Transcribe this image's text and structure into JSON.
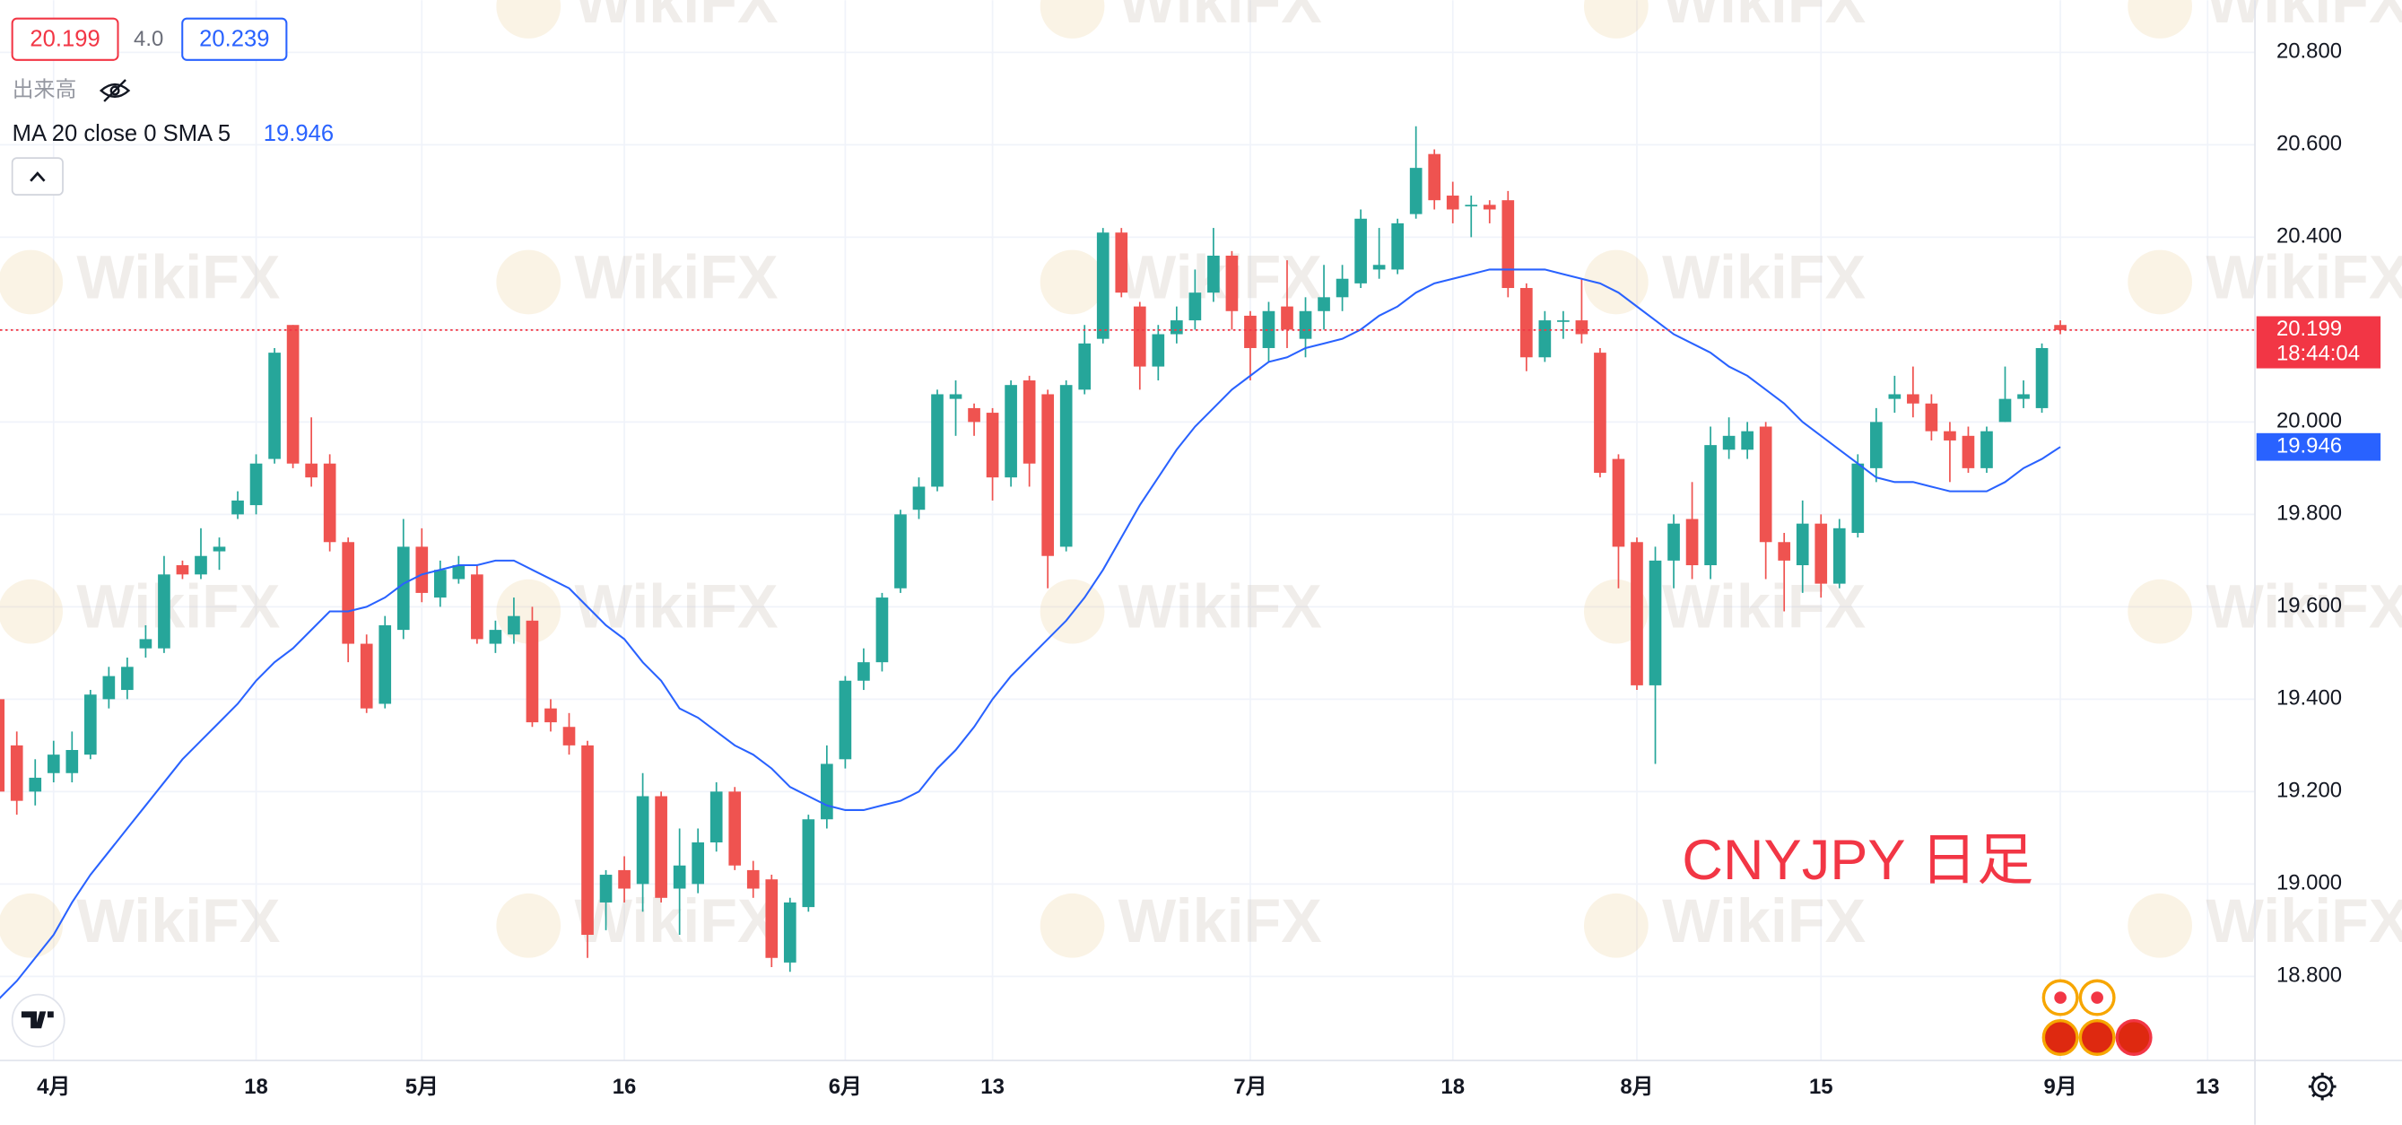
{
  "toolbar": {
    "sell": "20.199",
    "spread": "4.0",
    "buy": "20.239",
    "volume_label": "出来高",
    "indicator": "MA 20 close 0 SMA 5",
    "indicator_value": "19.946"
  },
  "chart_data": {
    "type": "candlestick",
    "annotation": "CNYJPY 日足",
    "watermark": "WikiFX",
    "up_color": "#26a69a",
    "down_color": "#ef5350",
    "grid": true,
    "categories": [
      null,
      null,
      null,
      "4月",
      null,
      null,
      null,
      null,
      null,
      null,
      null,
      null,
      null,
      null,
      "18",
      null,
      null,
      null,
      null,
      null,
      null,
      null,
      null,
      "5月",
      null,
      null,
      null,
      null,
      null,
      null,
      null,
      null,
      null,
      null,
      "16",
      null,
      null,
      null,
      null,
      null,
      null,
      null,
      null,
      null,
      null,
      null,
      "6月",
      null,
      null,
      null,
      null,
      null,
      null,
      null,
      "13",
      null,
      null,
      null,
      null,
      null,
      null,
      null,
      null,
      null,
      null,
      null,
      null,
      null,
      "7月",
      null,
      null,
      null,
      null,
      null,
      null,
      null,
      null,
      null,
      null,
      "18",
      null,
      null,
      null,
      null,
      null,
      null,
      null,
      null,
      null,
      "8月",
      null,
      null,
      null,
      null,
      null,
      null,
      null,
      null,
      null,
      "15",
      null,
      null,
      null,
      null,
      null,
      null,
      null,
      null,
      null,
      null,
      null,
      null,
      "9月",
      null,
      null,
      null,
      null,
      null,
      null,
      null,
      "13"
    ],
    "open": [
      19.4,
      19.3,
      19.2,
      19.24,
      19.24,
      19.28,
      19.4,
      19.42,
      19.51,
      19.51,
      19.69,
      19.67,
      19.72,
      19.8,
      19.82,
      19.92,
      20.21,
      19.91,
      19.91,
      19.74,
      19.52,
      19.39,
      19.55,
      19.73,
      19.62,
      19.66,
      19.67,
      19.52,
      19.54,
      19.57,
      19.38,
      19.34,
      19.3,
      18.96,
      19.03,
      19.0,
      19.19,
      18.99,
      19.0,
      19.09,
      19.2,
      19.03,
      19.01,
      18.83,
      18.95,
      19.14,
      19.27,
      19.44,
      19.48,
      19.64,
      19.81,
      19.86,
      20.05,
      20.03,
      20.02,
      19.88,
      20.09,
      20.06,
      19.73,
      20.07,
      20.18,
      20.41,
      20.25,
      20.12,
      20.19,
      20.22,
      20.28,
      20.36,
      20.23,
      20.16,
      20.25,
      20.18,
      20.24,
      20.27,
      20.3,
      20.33,
      20.33,
      20.45,
      20.58,
      20.49,
      20.47,
      20.47,
      20.48,
      20.29,
      20.14,
      20.22,
      20.22,
      20.15,
      19.92,
      19.74,
      19.43,
      19.7,
      19.79,
      19.69,
      19.94,
      19.94,
      19.99,
      19.74,
      19.69,
      19.78,
      19.65,
      19.76,
      19.9,
      20.05,
      20.06,
      20.04,
      19.98,
      19.97,
      19.9,
      20.0,
      20.05,
      20.03,
      20.21,
      null,
      null,
      null,
      null,
      null,
      null,
      null,
      null
    ],
    "high": [
      19.42,
      19.33,
      19.27,
      19.31,
      19.33,
      19.42,
      19.47,
      19.49,
      19.56,
      19.71,
      19.7,
      19.77,
      19.75,
      19.85,
      19.93,
      20.16,
      20.21,
      20.01,
      19.93,
      19.75,
      19.54,
      19.58,
      19.79,
      19.77,
      19.7,
      19.71,
      19.69,
      19.57,
      19.62,
      19.6,
      19.4,
      19.37,
      19.31,
      19.03,
      19.06,
      19.24,
      19.2,
      19.12,
      19.12,
      19.22,
      19.21,
      19.05,
      19.02,
      18.97,
      19.15,
      19.3,
      19.45,
      19.51,
      19.63,
      19.81,
      19.88,
      20.07,
      20.09,
      20.04,
      20.03,
      20.09,
      20.1,
      20.07,
      20.09,
      20.21,
      20.42,
      20.42,
      20.26,
      20.21,
      20.25,
      20.33,
      20.42,
      20.37,
      20.24,
      20.26,
      20.35,
      20.27,
      20.34,
      20.34,
      20.46,
      20.42,
      20.44,
      20.64,
      20.59,
      20.52,
      20.49,
      20.48,
      20.5,
      20.3,
      20.24,
      20.24,
      20.31,
      20.16,
      19.93,
      19.75,
      19.73,
      19.8,
      19.87,
      19.99,
      20.01,
      20.0,
      20.0,
      19.76,
      19.83,
      19.8,
      19.79,
      19.93,
      20.03,
      20.1,
      20.12,
      20.06,
      20.0,
      19.99,
      19.99,
      20.12,
      20.09,
      20.17,
      20.22,
      null,
      null,
      null,
      null,
      null,
      null,
      null,
      null
    ],
    "low": [
      19.12,
      19.15,
      19.17,
      19.22,
      19.22,
      19.27,
      19.38,
      19.4,
      19.49,
      19.5,
      19.66,
      19.66,
      19.68,
      19.79,
      19.8,
      19.91,
      19.9,
      19.86,
      19.72,
      19.48,
      19.37,
      19.38,
      19.53,
      19.61,
      19.6,
      19.65,
      19.52,
      19.5,
      19.52,
      19.34,
      19.33,
      19.28,
      18.84,
      18.9,
      18.96,
      18.94,
      18.96,
      18.89,
      18.98,
      19.07,
      19.03,
      18.97,
      18.82,
      18.81,
      18.94,
      19.12,
      19.25,
      19.42,
      19.46,
      19.63,
      19.79,
      19.85,
      19.97,
      19.97,
      19.83,
      19.86,
      19.86,
      19.64,
      19.72,
      20.06,
      20.17,
      20.27,
      20.07,
      20.09,
      20.17,
      20.2,
      20.26,
      20.2,
      20.09,
      20.13,
      20.16,
      20.14,
      20.2,
      20.24,
      20.29,
      20.31,
      20.32,
      20.44,
      20.46,
      20.43,
      20.4,
      20.43,
      20.27,
      20.11,
      20.13,
      20.18,
      20.17,
      19.88,
      19.64,
      19.42,
      19.26,
      19.64,
      19.66,
      19.66,
      19.92,
      19.92,
      19.66,
      19.59,
      19.63,
      19.62,
      19.64,
      19.75,
      19.87,
      20.02,
      20.01,
      19.96,
      19.87,
      19.89,
      19.89,
      20.0,
      20.03,
      20.02,
      20.19,
      null,
      null,
      null,
      null,
      null,
      null,
      null,
      null
    ],
    "close": [
      19.2,
      19.18,
      19.23,
      19.28,
      19.29,
      19.41,
      19.45,
      19.47,
      19.53,
      19.67,
      19.67,
      19.71,
      19.73,
      19.83,
      19.91,
      20.15,
      19.91,
      19.88,
      19.74,
      19.52,
      19.38,
      19.56,
      19.73,
      19.63,
      19.68,
      19.69,
      19.53,
      19.55,
      19.58,
      19.35,
      19.35,
      19.3,
      18.89,
      19.02,
      18.99,
      19.19,
      18.97,
      19.04,
      19.09,
      19.2,
      19.04,
      18.99,
      18.84,
      18.96,
      19.14,
      19.26,
      19.44,
      19.48,
      19.62,
      19.8,
      19.86,
      20.06,
      20.06,
      20.0,
      19.88,
      20.08,
      19.91,
      19.71,
      20.08,
      20.17,
      20.41,
      20.28,
      20.12,
      20.19,
      20.22,
      20.28,
      20.36,
      20.24,
      20.16,
      20.24,
      20.2,
      20.24,
      20.27,
      20.31,
      20.44,
      20.34,
      20.43,
      20.55,
      20.48,
      20.46,
      20.47,
      20.46,
      20.29,
      20.14,
      20.22,
      20.22,
      20.19,
      19.89,
      19.73,
      19.43,
      19.7,
      19.78,
      19.69,
      19.95,
      19.97,
      19.98,
      19.74,
      19.7,
      19.78,
      19.65,
      19.77,
      19.91,
      20.0,
      20.06,
      20.04,
      19.98,
      19.96,
      19.9,
      19.98,
      20.05,
      20.06,
      20.16,
      20.199,
      null,
      null,
      null,
      null,
      null,
      null,
      null,
      null
    ],
    "ma": {
      "color": "#2962ff",
      "values": [
        18.75,
        18.79,
        18.84,
        18.89,
        18.96,
        19.02,
        19.07,
        19.12,
        19.17,
        19.22,
        19.27,
        19.31,
        19.35,
        19.39,
        19.44,
        19.48,
        19.51,
        19.55,
        19.59,
        19.59,
        19.6,
        19.62,
        19.65,
        19.67,
        19.68,
        19.69,
        19.69,
        19.7,
        19.7,
        19.68,
        19.66,
        19.64,
        19.6,
        19.56,
        19.53,
        19.48,
        19.44,
        19.38,
        19.36,
        19.33,
        19.3,
        19.28,
        19.25,
        19.21,
        19.19,
        19.17,
        19.16,
        19.16,
        19.17,
        19.18,
        19.2,
        19.25,
        19.29,
        19.34,
        19.4,
        19.45,
        19.49,
        19.53,
        19.57,
        19.62,
        19.68,
        19.75,
        19.82,
        19.88,
        19.94,
        19.99,
        20.03,
        20.07,
        20.1,
        20.13,
        20.14,
        20.16,
        20.17,
        20.18,
        20.2,
        20.23,
        20.25,
        20.28,
        20.3,
        20.31,
        20.32,
        20.33,
        20.33,
        20.33,
        20.33,
        20.32,
        20.31,
        20.3,
        20.28,
        20.25,
        20.22,
        20.19,
        20.17,
        20.15,
        20.12,
        20.1,
        20.07,
        20.04,
        20.0,
        19.97,
        19.94,
        19.91,
        19.88,
        19.87,
        19.87,
        19.86,
        19.85,
        19.85,
        19.85,
        19.87,
        19.9,
        19.92,
        19.946,
        null,
        null,
        null,
        null,
        null,
        null,
        null,
        null
      ]
    },
    "ylim": [
      18.618,
      20.913
    ],
    "yticks": [
      {
        "value": 18.8,
        "label": "18.800"
      },
      {
        "value": 19.0,
        "label": "19.000"
      },
      {
        "value": 19.2,
        "label": "19.200"
      },
      {
        "value": 19.4,
        "label": "19.400"
      },
      {
        "value": 19.6,
        "label": "19.600"
      },
      {
        "value": 19.8,
        "label": "19.800"
      },
      {
        "value": 20.0,
        "label": "20.000"
      },
      {
        "value": 20.2,
        "label": "20.200"
      },
      {
        "value": 20.4,
        "label": "20.400"
      },
      {
        "value": 20.6,
        "label": "20.600"
      },
      {
        "value": 20.8,
        "label": "20.800"
      }
    ],
    "price_labels": [
      {
        "value": 20.199,
        "label": "20.199",
        "countdown": "18:44:04",
        "color": "#f23645",
        "dashed_line": true
      },
      {
        "value": 19.946,
        "label": "19.946",
        "color": "#2962ff",
        "dashed_line": false
      }
    ]
  }
}
